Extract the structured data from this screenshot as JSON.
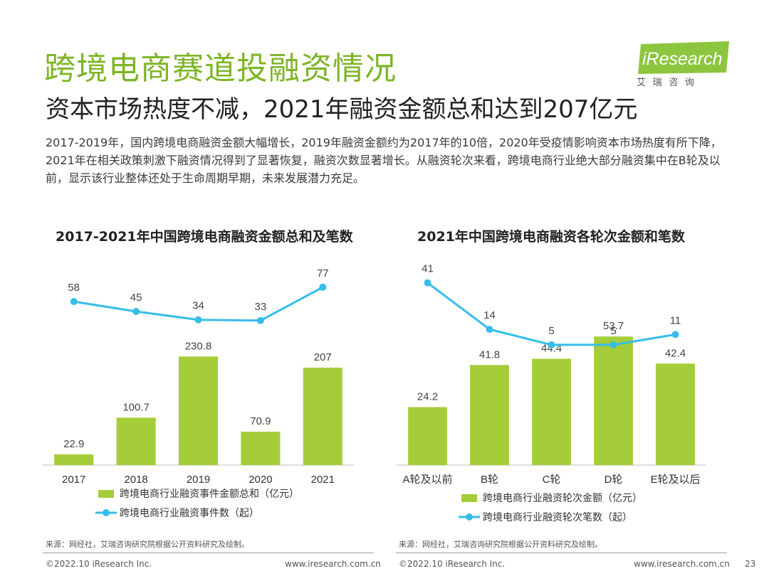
{
  "header": {
    "title": "跨境电商赛道投融资情况",
    "subtitle": "资本市场热度不减，2021年融资金额总和达到207亿元",
    "description": "2017-2019年，国内跨境电商融资金额大幅增长，2019年融资金额约为2017年的10倍，2020年受疫情影响资本市场热度有所下降，2021年在相关政策刺激下融资情况得到了显著恢复，融资次数显著增长。从融资轮次来看，跨境电商行业绝大部分融资集中在B轮及以前，显示该行业整体还处于生命周期早期，未来发展潜力充足。"
  },
  "logo": {
    "brand": "iResearch",
    "chinese": "艾 瑞 咨 询"
  },
  "colors": {
    "accent": "#7db526",
    "bar": "#a5cd39",
    "line": "#36bde9"
  },
  "chart_data": [
    {
      "type": "bar+line",
      "title": "2017-2021年中国跨境电商融资金额总和及笔数",
      "categories": [
        "2017",
        "2018",
        "2019",
        "2020",
        "2021"
      ],
      "series": [
        {
          "name": "跨境电商行业融资事件金额总和（亿元）",
          "kind": "bar",
          "values": [
            22.9,
            100.7,
            230.8,
            70.9,
            207
          ]
        },
        {
          "name": "跨境电商行业融资事件数（起）",
          "kind": "line",
          "values": [
            58,
            45,
            34,
            33,
            77
          ]
        }
      ],
      "bar_ylim": [
        0,
        260
      ],
      "line_ylim": [
        0,
        90
      ],
      "source": "来源：网经社，艾瑞咨询研究院根据公开资料研究及绘制。"
    },
    {
      "type": "bar+line",
      "title": "2021年中国跨境电商融资各轮次金额和笔数",
      "categories": [
        "A轮及以前",
        "B轮",
        "C轮",
        "D轮",
        "E轮及以后"
      ],
      "series": [
        {
          "name": "跨境电商行业融资轮次金额（亿元）",
          "kind": "bar",
          "values": [
            24.2,
            41.8,
            44.4,
            53.7,
            42.4
          ]
        },
        {
          "name": "跨境电商行业融资轮次笔数（起）",
          "kind": "line",
          "values": [
            41,
            14,
            5,
            5,
            11
          ]
        }
      ],
      "bar_ylim": [
        0,
        60
      ],
      "line_ylim": [
        0,
        45
      ],
      "source": "来源：网经社，艾瑞咨询研究院根据公开资料研究及绘制。"
    }
  ],
  "footer": {
    "left_copyright": "©2022.10 iResearch Inc.",
    "left_url": "www.iresearch.com.cn",
    "right_copyright": "©2022.10 iResearch Inc.",
    "right_url": "www.iresearch.com.cn",
    "page_number": "23"
  }
}
